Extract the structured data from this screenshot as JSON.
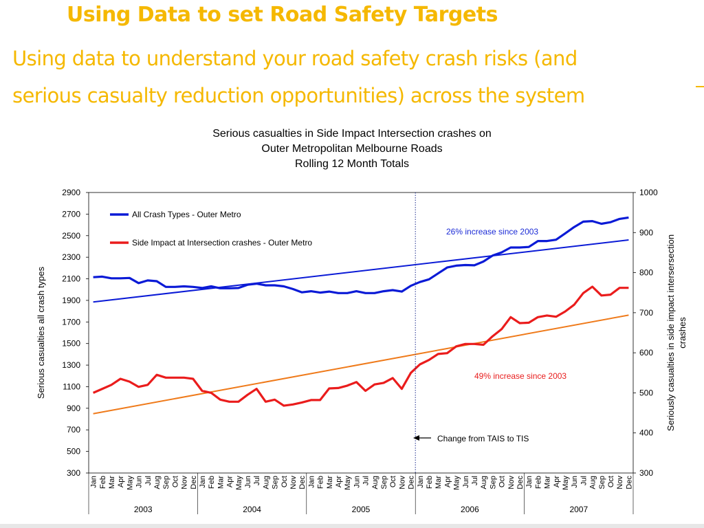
{
  "slide": {
    "title": "Using Data to set Road Safety Targets",
    "subtitle_line1": "Using data to understand your road safety crash risks (and",
    "subtitle_line2": "serious casualty reduction opportunities) across the system"
  },
  "chart_data": {
    "type": "line",
    "title_lines": [
      "Serious casualties in Side Impact Intersection crashes on",
      "Outer Metropolitan Melbourne Roads",
      "Rolling 12 Month Totals"
    ],
    "ylabel_left": "Serious casualties all crash types",
    "ylabel_right_lines": [
      "Seriously casualties in side impact intersersection",
      "crashes"
    ],
    "ylim_left": [
      300,
      2900
    ],
    "ylim_right": [
      300,
      1000
    ],
    "left_ticks": [
      300,
      500,
      700,
      900,
      1100,
      1300,
      1500,
      1700,
      1900,
      2100,
      2300,
      2500,
      2700,
      2900
    ],
    "right_ticks": [
      300,
      400,
      500,
      600,
      700,
      800,
      900,
      1000
    ],
    "months": [
      "Jan",
      "Feb",
      "Mar",
      "Apr",
      "May",
      "Jun",
      "Jul",
      "Aug",
      "Sep",
      "Oct",
      "Nov",
      "Dec"
    ],
    "years": [
      "2003",
      "2004",
      "2005",
      "2006",
      "2007"
    ],
    "series": [
      {
        "name": "All Crash Types - Outer Metro",
        "axis": "left",
        "color": "#0a1ad6",
        "values": [
          2115,
          2120,
          2105,
          2105,
          2108,
          2060,
          2085,
          2078,
          2025,
          2025,
          2030,
          2025,
          2015,
          2030,
          2012,
          2012,
          2015,
          2045,
          2055,
          2040,
          2040,
          2030,
          2005,
          1975,
          1985,
          1972,
          1982,
          1968,
          1968,
          1985,
          1968,
          1968,
          1985,
          1995,
          1982,
          2035,
          2070,
          2095,
          2150,
          2205,
          2222,
          2228,
          2225,
          2260,
          2315,
          2345,
          2390,
          2390,
          2395,
          2450,
          2450,
          2462,
          2520,
          2580,
          2630,
          2635,
          2610,
          2625,
          2655,
          2668
        ]
      },
      {
        "name": "Side Impact at Intersection crashes - Outer Metro",
        "axis": "right",
        "color": "#ea1c1c",
        "values": [
          500,
          510,
          520,
          535,
          528,
          515,
          520,
          545,
          538,
          538,
          538,
          535,
          505,
          500,
          483,
          478,
          478,
          495,
          510,
          478,
          483,
          468,
          471,
          476,
          482,
          482,
          511,
          512,
          518,
          527,
          505,
          521,
          525,
          537,
          510,
          550,
          571,
          582,
          597,
          599,
          616,
          622,
          622,
          620,
          641,
          659,
          689,
          674,
          675,
          689,
          693,
          690,
          703,
          720,
          749,
          765,
          743,
          745,
          762,
          762
        ]
      }
    ],
    "trendlines": [
      {
        "axis": "left",
        "color": "#0a1ad6",
        "start": 1885,
        "end": 2460
      },
      {
        "axis": "right",
        "color": "#ef7a1a",
        "start": 448,
        "end": 694
      }
    ],
    "annotations": {
      "increase_all": "26% increase since 2003",
      "increase_side": "49% increase since 2003",
      "change": "Change from TAIS to TIS",
      "change_after_month_index": 35
    }
  }
}
